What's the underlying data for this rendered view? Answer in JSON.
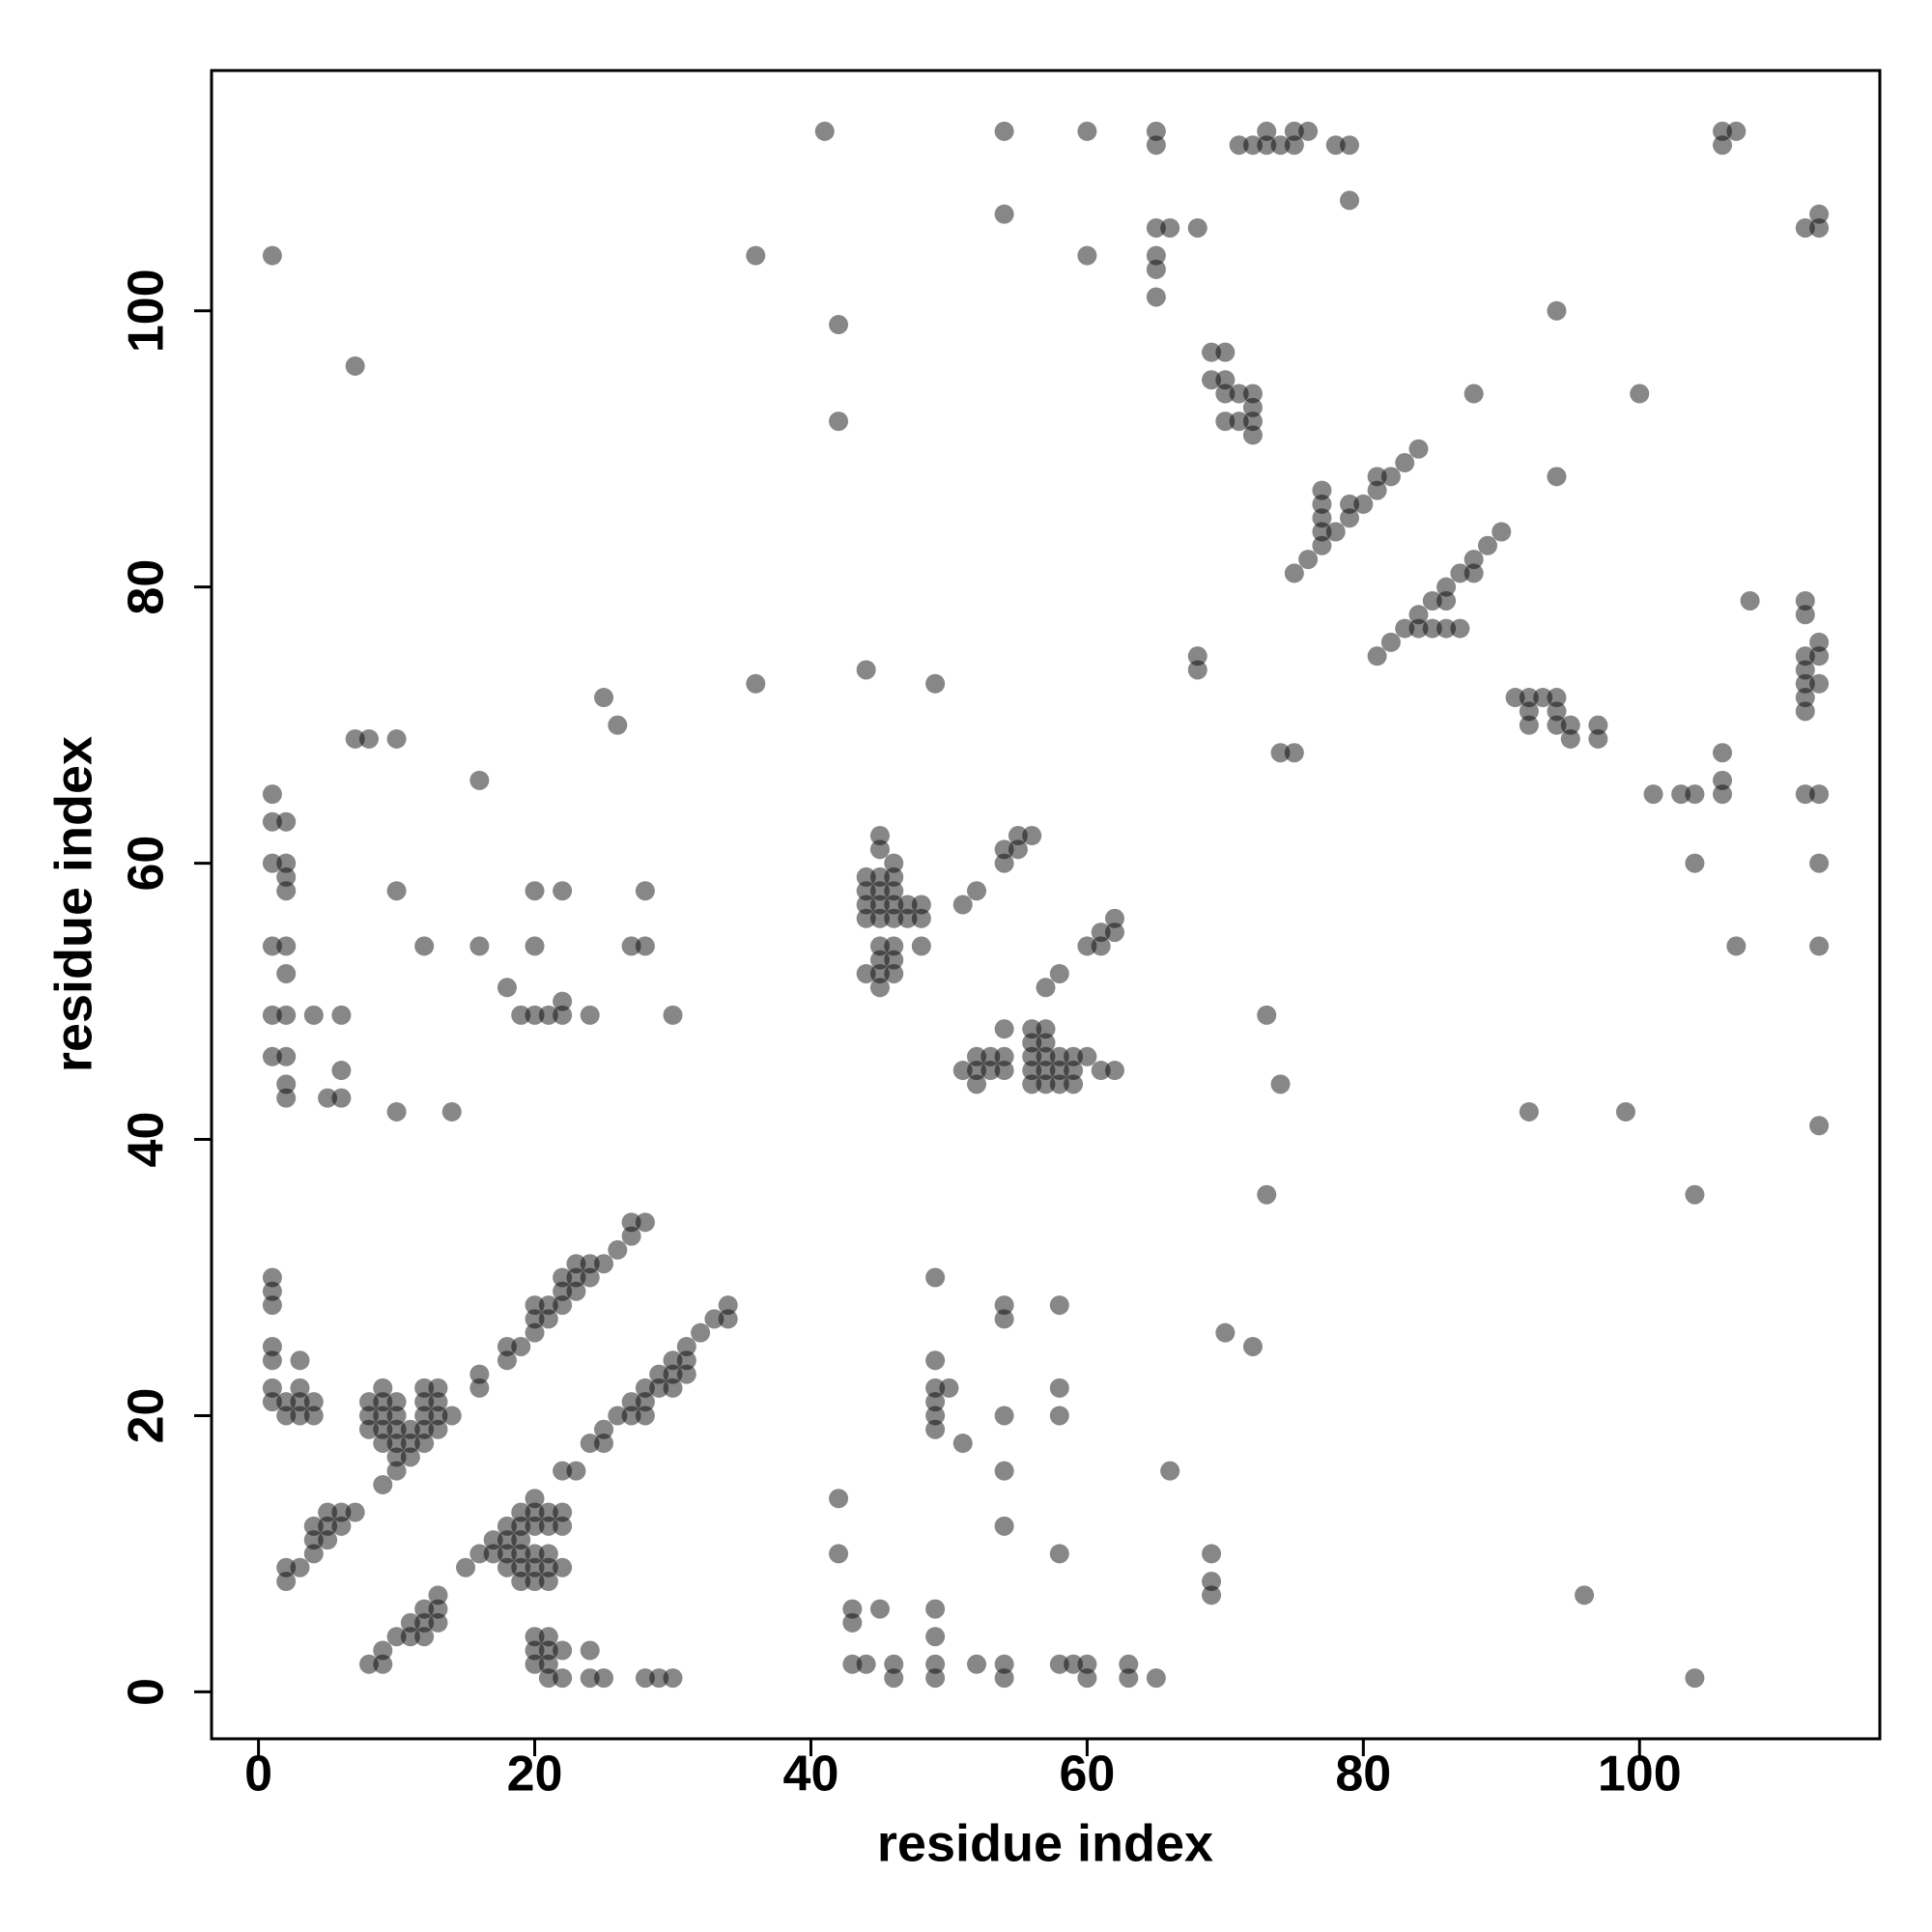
{
  "chart_data": {
    "type": "scatter",
    "xlabel": "residue index",
    "ylabel": "residue index",
    "color": "#000000",
    "alpha": 0.47,
    "xlim": [
      -3.4,
      117.4
    ],
    "ylim": [
      -3.4,
      117.4
    ],
    "xticks": [
      0,
      20,
      40,
      60,
      80,
      100
    ],
    "yticks": [
      0,
      20,
      40,
      60,
      80,
      100
    ],
    "x": [
      2,
      2,
      3,
      4,
      4,
      4,
      5,
      5,
      5,
      6,
      6,
      7,
      9,
      10,
      10,
      11,
      11,
      12,
      12,
      13,
      13,
      14,
      16,
      16,
      18,
      18,
      19,
      20,
      20,
      20,
      21,
      21,
      22,
      22,
      22,
      23,
      23,
      23,
      24,
      24,
      25,
      26,
      27,
      27,
      28,
      8,
      8,
      8,
      9,
      9,
      9,
      9,
      9,
      10,
      10,
      10,
      10,
      11,
      12,
      12,
      12,
      13,
      13,
      1,
      1,
      1,
      1,
      1,
      1,
      1,
      2,
      2,
      3,
      3,
      3,
      3,
      4,
      4,
      8,
      9,
      9,
      10,
      11,
      11,
      12,
      12,
      12,
      13,
      13,
      13,
      15,
      16,
      17,
      17,
      18,
      18,
      18,
      18,
      19,
      19,
      19,
      19,
      19,
      19,
      20,
      20,
      20,
      20,
      20,
      20,
      21,
      21,
      21,
      21,
      21,
      22,
      22,
      22,
      22,
      23,
      24,
      25,
      25,
      26,
      27,
      27,
      28,
      28,
      28,
      29,
      29,
      30,
      30,
      30,
      31,
      31,
      31,
      32,
      33,
      34,
      34,
      20,
      20,
      20,
      21,
      21,
      21,
      21,
      22,
      22,
      24,
      24,
      25,
      28,
      29,
      30,
      1,
      1,
      1,
      1,
      1,
      1,
      2,
      2,
      2,
      2,
      2,
      2,
      2,
      2,
      2,
      2,
      4,
      5,
      6,
      6,
      6,
      7,
      8,
      10,
      10,
      10,
      12,
      14,
      16,
      16,
      18,
      19,
      20,
      20,
      20,
      21,
      22,
      22,
      22,
      24,
      25,
      26,
      27,
      28,
      28,
      30,
      36,
      36,
      1,
      7,
      44,
      44,
      44,
      44,
      44,
      45,
      45,
      45,
      45,
      45,
      45,
      45,
      45,
      45,
      45,
      46,
      46,
      46,
      46,
      46,
      46,
      46,
      46,
      47,
      47,
      48,
      48,
      48,
      51,
      52,
      54,
      54,
      55,
      55,
      56,
      44,
      49,
      42,
      42,
      41,
      57,
      58,
      60,
      61,
      61,
      62,
      62,
      51,
      52,
      52,
      52,
      53,
      53,
      54,
      54,
      54,
      56,
      56,
      56,
      56,
      56,
      57,
      57,
      57,
      57,
      57,
      58,
      58,
      58,
      59,
      59,
      59,
      60,
      61,
      62,
      42,
      42,
      43,
      43,
      43,
      44,
      45,
      46,
      46,
      49,
      49,
      49,
      49,
      49,
      49,
      49,
      49,
      49,
      49,
      50,
      51,
      52,
      54,
      54,
      54,
      54,
      54,
      54,
      54,
      58,
      58,
      58,
      58,
      58,
      59,
      60,
      60,
      63,
      63,
      65,
      66,
      69,
      69,
      69,
      70,
      72,
      73,
      73,
      74,
      96,
      104,
      104,
      92,
      99,
      113,
      54,
      54,
      60,
      60,
      65,
      65,
      65,
      65,
      65,
      65,
      66,
      68,
      71,
      72,
      73,
      73,
      74,
      75,
      75,
      76,
      78,
      79,
      79,
      68,
      68,
      69,
      69,
      70,
      70,
      70,
      70,
      71,
      71,
      72,
      72,
      72,
      72,
      74,
      75,
      75,
      76,
      77,
      77,
      77,
      77,
      77,
      78,
      79,
      79,
      80,
      81,
      81,
      82,
      83,
      84,
      81,
      82,
      83,
      84,
      84,
      85,
      85,
      86,
      86,
      86,
      87,
      87,
      88,
      88,
      89,
      90,
      88,
      94,
      94,
      100,
      91,
      92,
      92,
      92,
      93,
      94,
      94,
      94,
      95,
      95,
      97,
      97,
      101,
      103,
      104,
      104,
      106,
      106,
      106,
      107,
      108,
      106,
      106,
      107,
      112,
      113,
      113,
      112,
      113,
      113,
      113,
      112,
      112,
      112,
      112,
      112,
      113,
      113,
      113,
      112,
      112
    ],
    "values": [
      8,
      9,
      9,
      10,
      11,
      12,
      11,
      12,
      13,
      12,
      13,
      13,
      15,
      16,
      17,
      17,
      18,
      18,
      19,
      19,
      20,
      20,
      22,
      23,
      24,
      25,
      25,
      26,
      27,
      28,
      27,
      28,
      28,
      29,
      30,
      29,
      30,
      31,
      30,
      31,
      31,
      32,
      33,
      34,
      34,
      19,
      20,
      21,
      18,
      19,
      20,
      21,
      22,
      18,
      19,
      20,
      21,
      19,
      20,
      21,
      22,
      21,
      22,
      21,
      22,
      24,
      25,
      28,
      29,
      30,
      20,
      21,
      20,
      21,
      22,
      24,
      20,
      21,
      2,
      2,
      3,
      4,
      4,
      5,
      4,
      5,
      6,
      5,
      6,
      7,
      9,
      10,
      10,
      11,
      9,
      10,
      11,
      12,
      8,
      9,
      10,
      11,
      12,
      13,
      8,
      9,
      10,
      12,
      13,
      14,
      8,
      9,
      10,
      12,
      13,
      9,
      12,
      13,
      16,
      16,
      18,
      18,
      19,
      20,
      20,
      21,
      20,
      21,
      22,
      22,
      23,
      22,
      23,
      24,
      23,
      24,
      25,
      26,
      27,
      27,
      28,
      2,
      3,
      4,
      1,
      2,
      3,
      4,
      1,
      3,
      1,
      3,
      1,
      1,
      1,
      1,
      46,
      49,
      54,
      60,
      63,
      65,
      43,
      44,
      46,
      49,
      52,
      54,
      58,
      59,
      60,
      63,
      49,
      43,
      43,
      45,
      49,
      69,
      69,
      69,
      58,
      42,
      54,
      42,
      54,
      66,
      51,
      49,
      49,
      54,
      58,
      49,
      49,
      50,
      58,
      49,
      72,
      70,
      54,
      54,
      58,
      49,
      73,
      104,
      104,
      96,
      52,
      56,
      57,
      58,
      59,
      51,
      52,
      53,
      54,
      56,
      57,
      58,
      59,
      61,
      62,
      52,
      53,
      54,
      56,
      57,
      58,
      59,
      60,
      56,
      57,
      54,
      56,
      57,
      57,
      58,
      60,
      61,
      61,
      62,
      62,
      74,
      73,
      92,
      99,
      113,
      51,
      52,
      54,
      54,
      55,
      55,
      56,
      45,
      44,
      45,
      46,
      45,
      46,
      45,
      46,
      48,
      44,
      45,
      46,
      47,
      48,
      44,
      45,
      46,
      47,
      48,
      44,
      45,
      46,
      44,
      45,
      46,
      46,
      45,
      45,
      10,
      14,
      2,
      5,
      6,
      2,
      6,
      1,
      2,
      1,
      2,
      4,
      6,
      19,
      20,
      21,
      22,
      24,
      30,
      22,
      18,
      2,
      1,
      2,
      12,
      16,
      20,
      27,
      28,
      2,
      10,
      20,
      22,
      28,
      2,
      1,
      2,
      1,
      2,
      1,
      16,
      7,
      8,
      10,
      26,
      25,
      36,
      49,
      44,
      7,
      1,
      36,
      42,
      42,
      41,
      107,
      113,
      104,
      113,
      101,
      103,
      104,
      106,
      112,
      113,
      106,
      106,
      112,
      112,
      112,
      113,
      112,
      112,
      113,
      113,
      112,
      112,
      108,
      74,
      75,
      95,
      97,
      92,
      94,
      95,
      97,
      92,
      94,
      91,
      92,
      93,
      94,
      68,
      68,
      81,
      82,
      83,
      84,
      85,
      86,
      87,
      84,
      85,
      86,
      86,
      87,
      88,
      88,
      89,
      90,
      75,
      76,
      77,
      77,
      78,
      77,
      79,
      77,
      79,
      80,
      77,
      81,
      81,
      82,
      83,
      84,
      94,
      88,
      100,
      94,
      72,
      70,
      71,
      72,
      72,
      70,
      71,
      72,
      69,
      70,
      69,
      70,
      65,
      65,
      65,
      60,
      65,
      66,
      68,
      54,
      79,
      112,
      113,
      113,
      106,
      106,
      107,
      65,
      65,
      60,
      54,
      71,
      72,
      73,
      74,
      75,
      73,
      75,
      76,
      78,
      79
    ]
  }
}
